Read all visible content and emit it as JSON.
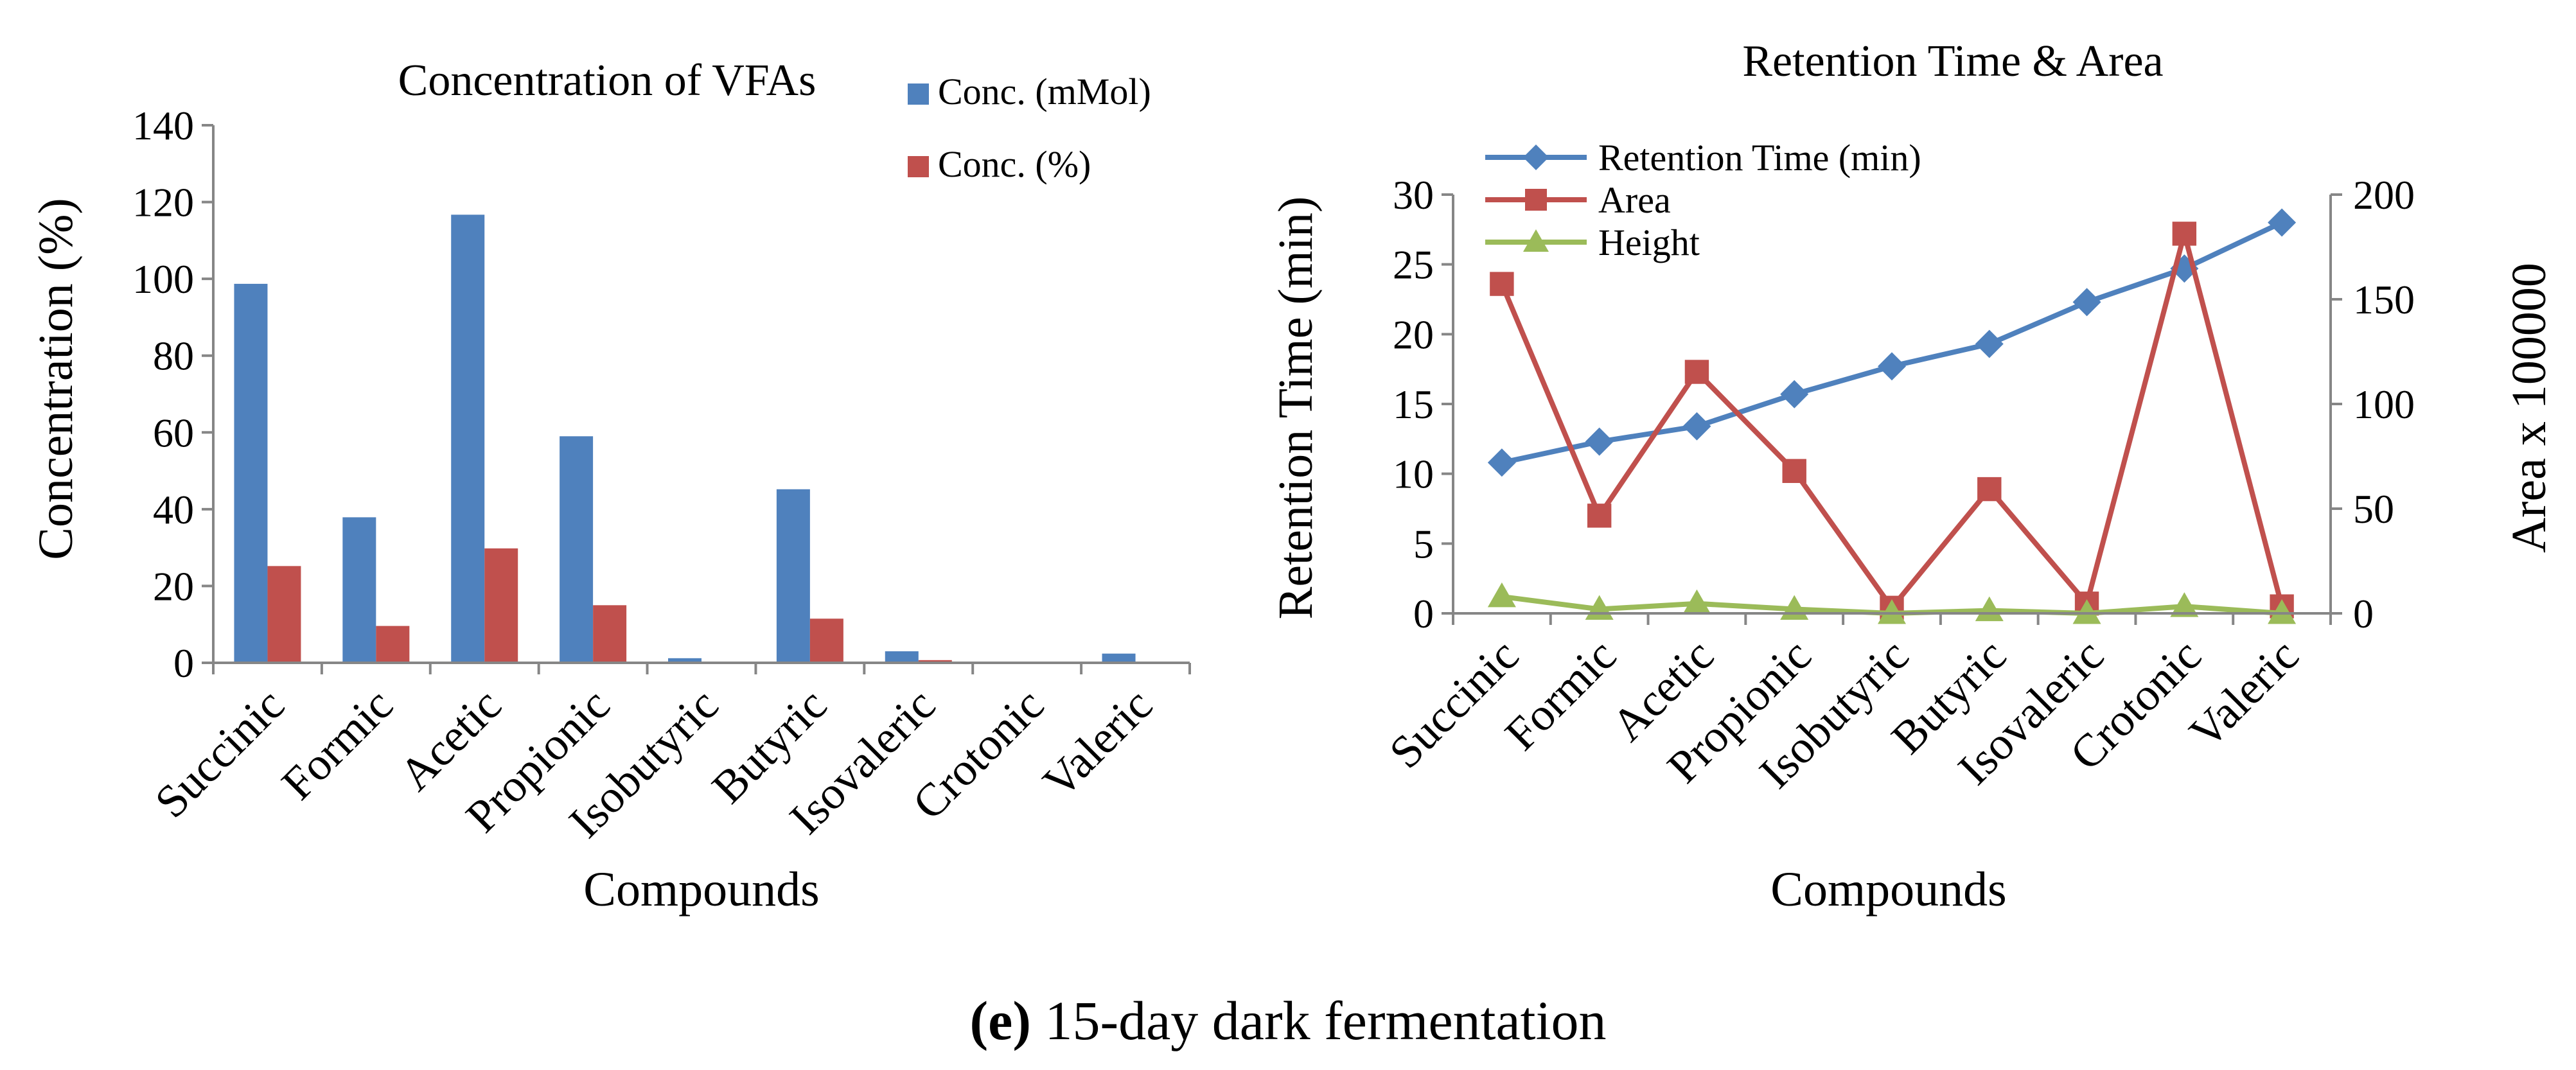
{
  "caption": {
    "panel_letter": "(e)",
    "text": " 15-day dark fermentation"
  },
  "colors": {
    "blue": "#4F81BD",
    "red": "#C0504D",
    "green": "#9BBB59",
    "axis": "#868686"
  },
  "chart_data": [
    {
      "type": "bar",
      "title": "Concentration of VFAs",
      "xlabel": "Compounds",
      "ylabel": "Concentration (%)",
      "ylim": [
        0,
        140
      ],
      "yticks": [
        "0",
        "20",
        "40",
        "60",
        "80",
        "100",
        "120",
        "140"
      ],
      "legend_position": "top-right",
      "categories": [
        "Succinic",
        "Formic",
        "Acetic",
        "Propionic",
        "Isobutyric",
        "Butyric",
        "Isovaleric",
        "Crotonic",
        "Valeric"
      ],
      "series": [
        {
          "name": "Conc. (mMol)",
          "color": "#4F81BD",
          "values": [
            98.7,
            37.9,
            116.7,
            59.0,
            1.2,
            45.2,
            3.0,
            0.0,
            2.4
          ]
        },
        {
          "name": "Conc. (%)",
          "color": "#C0504D",
          "values": [
            25.2,
            9.6,
            29.8,
            15.0,
            0.3,
            11.5,
            0.7,
            0.0,
            0.0
          ]
        }
      ]
    },
    {
      "type": "line",
      "title": "Retention Time & Area",
      "xlabel": "Compounds",
      "ylabel": "Retention Time (min)",
      "y2label": "Area x 100000",
      "ylim": [
        0,
        30
      ],
      "y2lim": [
        0,
        200
      ],
      "yticks": [
        "0",
        "5",
        "10",
        "15",
        "20",
        "25",
        "30"
      ],
      "y2ticks": [
        "0",
        "50",
        "100",
        "150",
        "200"
      ],
      "legend_position": "top-left",
      "categories": [
        "Succinic",
        "Formic",
        "Acetic",
        "Propionic",
        "Isobutyric",
        "Butyric",
        "Isovaleric",
        "Crotonic",
        "Valeric"
      ],
      "series": [
        {
          "name": "Retention Time (min)",
          "color": "#4F81BD",
          "marker": "diamond",
          "axis": "left",
          "values": [
            10.8,
            12.3,
            13.4,
            15.7,
            17.7,
            19.3,
            22.3,
            24.7,
            28.0
          ]
        },
        {
          "name": "Area",
          "color": "#C0504D",
          "marker": "square",
          "axis": "left",
          "values": [
            23.6,
            7.0,
            17.3,
            10.2,
            0.4,
            8.9,
            0.7,
            27.2,
            0.5
          ]
        },
        {
          "name": "Height",
          "color": "#9BBB59",
          "marker": "triangle",
          "axis": "left",
          "values": [
            1.2,
            0.3,
            0.7,
            0.3,
            0.0,
            0.2,
            0.0,
            0.5,
            0.0
          ]
        }
      ]
    }
  ]
}
